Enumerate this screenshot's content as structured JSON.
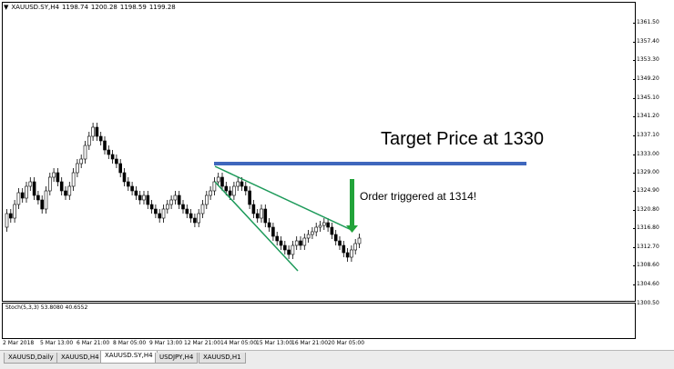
{
  "chart": {
    "symbol": "XAUUSD.SY,H4",
    "ohlc": [
      "1198.74",
      "1200.28",
      "1198.59",
      "1199.28"
    ],
    "target_label": "Target Price at 1330",
    "order_label": "Order triggered at 1314!",
    "colors": {
      "target_line": "#3f67bd",
      "trend_lines": "#1d9a5a",
      "arrow": "#22a33a",
      "stoch_main": "#1cb7c8",
      "stoch_signal": "#d81b1b"
    }
  },
  "price_axis": [
    "1361.50",
    "1357.40",
    "1353.30",
    "1349.20",
    "1345.10",
    "1341.20",
    "1337.10",
    "1333.00",
    "1329.00",
    "1324.90",
    "1320.80",
    "1316.80",
    "1312.70",
    "1308.60",
    "1304.60",
    "1300.50"
  ],
  "oscillator": {
    "label": "Stoch(5,3,3) 53.8080 40.6552"
  },
  "time_axis": [
    "2 Mar 2018",
    "5 Mar 13:00",
    "6 Mar 21:00",
    "8 Mar 05:00",
    "9 Mar 13:00",
    "12 Mar 21:00",
    "14 Mar 05:00",
    "15 Mar 13:00",
    "16 Mar 21:00",
    "20 Mar 05:00"
  ],
  "tabs": [
    {
      "label": "XAUUSD,Daily",
      "active": false
    },
    {
      "label": "XAUUSD,H4",
      "active": false
    },
    {
      "label": "XAUUSD.SY,H4",
      "active": true
    },
    {
      "label": "USDJPY,H4",
      "active": false
    },
    {
      "label": "XAUUSD,H1",
      "active": false
    }
  ]
}
